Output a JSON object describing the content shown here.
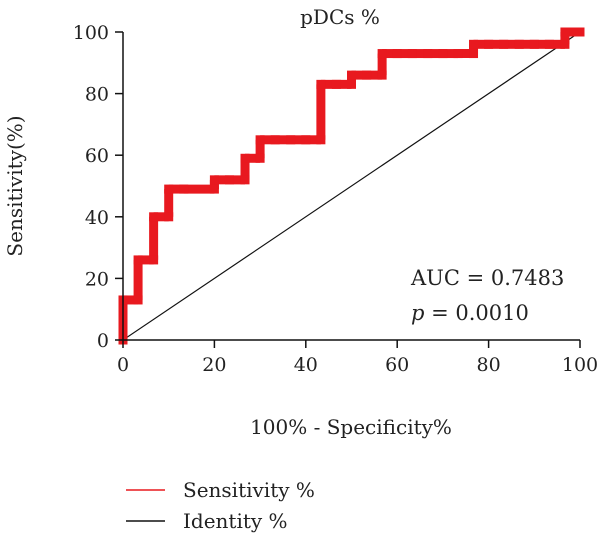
{
  "chart_data": {
    "type": "line",
    "title": "pDCs %",
    "xlabel": "100% - Specificity%",
    "ylabel": "Sensitivity(%)",
    "xlim": [
      0,
      100
    ],
    "ylim": [
      0,
      100
    ],
    "x_ticks": [
      "0",
      "20",
      "40",
      "60",
      "80",
      "100"
    ],
    "y_ticks": [
      "0",
      "20",
      "40",
      "60",
      "80",
      "100"
    ],
    "grid": false,
    "legend_position": "bottom-left",
    "series": [
      {
        "name": "Sensitivity %",
        "color": "#e8191f",
        "x": [
          0,
          0,
          3.3,
          3.3,
          6.7,
          6.7,
          10,
          10,
          13.3,
          20,
          20,
          23.3,
          26.7,
          26.7,
          30,
          30,
          33.3,
          36.7,
          40,
          43.3,
          43.3,
          46.7,
          50,
          50,
          53.3,
          56.7,
          56.7,
          60,
          63.3,
          66.7,
          70,
          73.3,
          76.7,
          76.7,
          80,
          83.3,
          86.7,
          90,
          93.3,
          96.7,
          96.7,
          100
        ],
        "y": [
          0,
          13,
          13,
          26,
          26,
          40,
          40,
          49,
          49,
          49,
          52,
          52,
          52,
          59,
          59,
          65,
          65,
          65,
          65,
          65,
          83,
          83,
          83,
          86,
          86,
          86,
          93,
          93,
          93,
          93,
          93,
          93,
          93,
          96,
          96,
          96,
          96,
          96,
          96,
          96,
          100,
          100
        ]
      },
      {
        "name": "Identity %",
        "color": "#111111",
        "x": [
          0,
          100
        ],
        "y": [
          0,
          100
        ]
      }
    ],
    "annotations": {
      "auc": "AUC = 0.7483",
      "p_symbol": "p",
      "p_value": " = 0.0010"
    }
  }
}
